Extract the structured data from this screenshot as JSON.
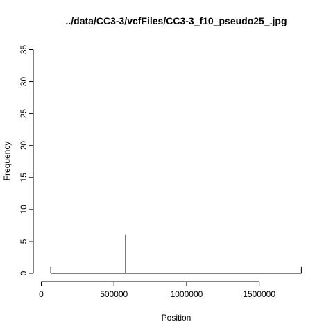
{
  "chart_data": {
    "type": "line",
    "title": "../data/CC3-3/vcfFiles/CC3-3_f10_pseudo25_.jpg",
    "xlabel": "Position",
    "ylabel": "Frequency",
    "xlim": [
      0,
      1800000
    ],
    "ylim": [
      0,
      35
    ],
    "x_ticks": [
      0,
      500000,
      1000000,
      1500000
    ],
    "x_tick_labels": [
      "0",
      "500000",
      "1000000",
      "1500000"
    ],
    "y_ticks": [
      0,
      5,
      10,
      15,
      20,
      25,
      30,
      35
    ],
    "y_tick_labels": [
      "0",
      "5",
      "10",
      "15",
      "20",
      "25",
      "30",
      "35"
    ],
    "grid": false,
    "series": [
      {
        "plot_type": "h",
        "x": [
          65000,
          580000,
          1790000
        ],
        "y": [
          1,
          6,
          1
        ]
      }
    ],
    "baseline": {
      "x": [
        65000,
        1790000
      ],
      "y": [
        0,
        0
      ]
    }
  }
}
